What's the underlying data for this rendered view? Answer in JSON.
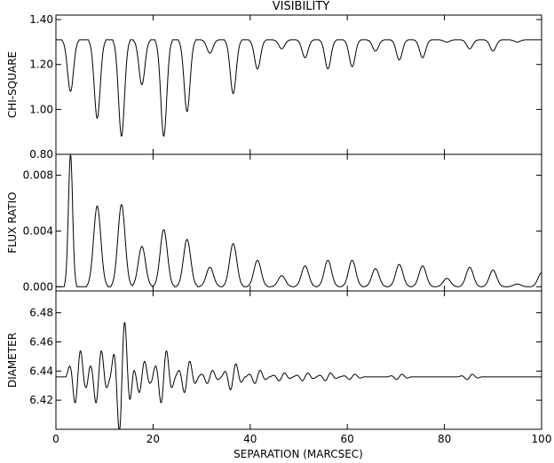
{
  "chart_data": {
    "type": "line",
    "title": "VISIBILITY",
    "xlabel": "SEPARATION (MARCSEC)",
    "xlim": [
      0,
      100
    ],
    "x_ticks": [
      0,
      20,
      40,
      60,
      80,
      100
    ],
    "x_tick_labels": [
      "0",
      "20",
      "40",
      "60",
      "80",
      "100"
    ],
    "panels": [
      {
        "ylabel": "CHI-SQUARE",
        "ylim": [
          0.8,
          1.42
        ],
        "y_ticks": [
          0.8,
          1.0,
          1.2,
          1.4
        ],
        "y_tick_labels": [
          "0.80",
          "1.00",
          "1.20",
          "1.40"
        ],
        "baseline": 1.31,
        "dips": [
          {
            "x": 3.0,
            "y": 1.08
          },
          {
            "x": 8.5,
            "y": 0.96
          },
          {
            "x": 13.5,
            "y": 0.88
          },
          {
            "x": 17.7,
            "y": 1.11
          },
          {
            "x": 22.2,
            "y": 0.88
          },
          {
            "x": 27.0,
            "y": 0.99
          },
          {
            "x": 31.7,
            "y": 1.25
          },
          {
            "x": 36.5,
            "y": 1.07
          },
          {
            "x": 41.5,
            "y": 1.18
          },
          {
            "x": 46.5,
            "y": 1.27
          },
          {
            "x": 51.3,
            "y": 1.23
          },
          {
            "x": 56.0,
            "y": 1.18
          },
          {
            "x": 61.0,
            "y": 1.19
          },
          {
            "x": 65.8,
            "y": 1.26
          },
          {
            "x": 70.7,
            "y": 1.22
          },
          {
            "x": 75.5,
            "y": 1.23
          },
          {
            "x": 80.5,
            "y": 1.3
          },
          {
            "x": 85.2,
            "y": 1.27
          },
          {
            "x": 90.0,
            "y": 1.26
          },
          {
            "x": 95.0,
            "y": 1.3
          }
        ]
      },
      {
        "ylabel": "FLUX RATIO",
        "ylim": [
          -0.0003,
          0.0095
        ],
        "y_ticks": [
          0.0,
          0.004,
          0.008
        ],
        "y_tick_labels": [
          "0.000",
          "0.004",
          "0.008"
        ],
        "baseline": 0.0,
        "peaks": [
          {
            "x": 3.0,
            "y": 0.0095
          },
          {
            "x": 8.5,
            "y": 0.0058
          },
          {
            "x": 13.5,
            "y": 0.0059
          },
          {
            "x": 17.7,
            "y": 0.0029
          },
          {
            "x": 22.2,
            "y": 0.0041
          },
          {
            "x": 27.0,
            "y": 0.0034
          },
          {
            "x": 31.7,
            "y": 0.0014
          },
          {
            "x": 36.5,
            "y": 0.0031
          },
          {
            "x": 41.5,
            "y": 0.0019
          },
          {
            "x": 46.5,
            "y": 0.0008
          },
          {
            "x": 51.3,
            "y": 0.0015
          },
          {
            "x": 56.0,
            "y": 0.0019
          },
          {
            "x": 61.0,
            "y": 0.0019
          },
          {
            "x": 65.8,
            "y": 0.0013
          },
          {
            "x": 70.7,
            "y": 0.0016
          },
          {
            "x": 75.5,
            "y": 0.0015
          },
          {
            "x": 80.5,
            "y": 0.0006
          },
          {
            "x": 85.2,
            "y": 0.0014
          },
          {
            "x": 90.0,
            "y": 0.0012
          },
          {
            "x": 95.0,
            "y": 0.0002
          },
          {
            "x": 100.0,
            "y": 0.001
          }
        ]
      },
      {
        "ylabel": "DIAMETER",
        "ylim": [
          6.4,
          6.495
        ],
        "y_ticks": [
          6.42,
          6.44,
          6.46,
          6.48
        ],
        "y_tick_labels": [
          "6.42",
          "6.44",
          "6.46",
          "6.48"
        ],
        "baseline": 6.436,
        "wiggles": [
          {
            "x": 4.5,
            "amp": 0.02
          },
          {
            "x": 8.8,
            "amp": 0.02
          },
          {
            "x": 13.6,
            "amp": 0.042
          },
          {
            "x": 17.7,
            "amp": 0.012
          },
          {
            "x": 22.2,
            "amp": 0.02
          },
          {
            "x": 27.0,
            "amp": 0.012
          },
          {
            "x": 31.7,
            "amp": 0.005
          },
          {
            "x": 36.5,
            "amp": 0.01
          },
          {
            "x": 41.5,
            "amp": 0.005
          },
          {
            "x": 46.5,
            "amp": 0.003
          },
          {
            "x": 51.3,
            "amp": 0.003
          },
          {
            "x": 56.0,
            "amp": 0.003
          },
          {
            "x": 61.0,
            "amp": 0.002
          },
          {
            "x": 70.7,
            "amp": 0.002
          },
          {
            "x": 85.2,
            "amp": 0.002
          }
        ]
      }
    ]
  }
}
